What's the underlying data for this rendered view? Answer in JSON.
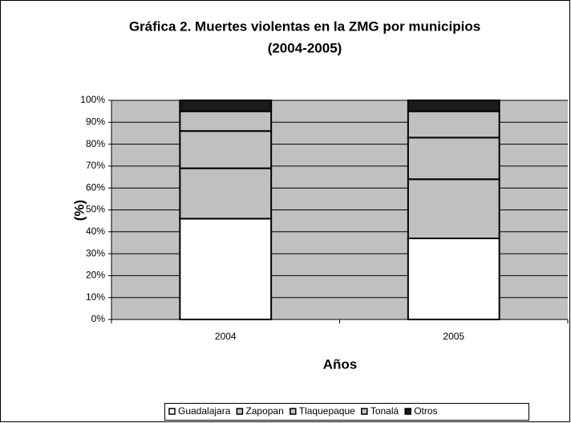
{
  "chart_data": {
    "type": "stacked_bar",
    "title": "Gráfica 2.  Muertes violentas en la ZMG por municipios",
    "subtitle": "(2004-2005)",
    "xlabel": "Años",
    "ylabel": "(%)",
    "categories": [
      "2004",
      "2005"
    ],
    "series": [
      {
        "name": "Guadalajara",
        "color": "#ffffff",
        "values": [
          46,
          37
        ]
      },
      {
        "name": "Zapopan",
        "color": "#c0c0c0",
        "values": [
          23,
          27
        ]
      },
      {
        "name": "Tlaquepaque",
        "color": "#c0c0c0",
        "values": [
          17,
          19
        ]
      },
      {
        "name": "Tonalá",
        "color": "#c0c0c0",
        "values": [
          9,
          12
        ]
      },
      {
        "name": "Otros",
        "color": "#1a1a1a",
        "values": [
          5,
          5
        ]
      }
    ],
    "ylim": [
      0,
      100
    ],
    "yticks": [
      {
        "value": 0,
        "label": "0%"
      },
      {
        "value": 10,
        "label": "10%"
      },
      {
        "value": 20,
        "label": "20%"
      },
      {
        "value": 30,
        "label": "30%"
      },
      {
        "value": 40,
        "label": "40%"
      },
      {
        "value": 50,
        "label": "50%"
      },
      {
        "value": 60,
        "label": "60%"
      },
      {
        "value": 70,
        "label": "70%"
      },
      {
        "value": 80,
        "label": "80%"
      },
      {
        "value": 90,
        "label": "90%"
      },
      {
        "value": 100,
        "label": "100%"
      }
    ],
    "grid": true,
    "legend": "bottom",
    "plot_background": "#c0c0c0"
  }
}
